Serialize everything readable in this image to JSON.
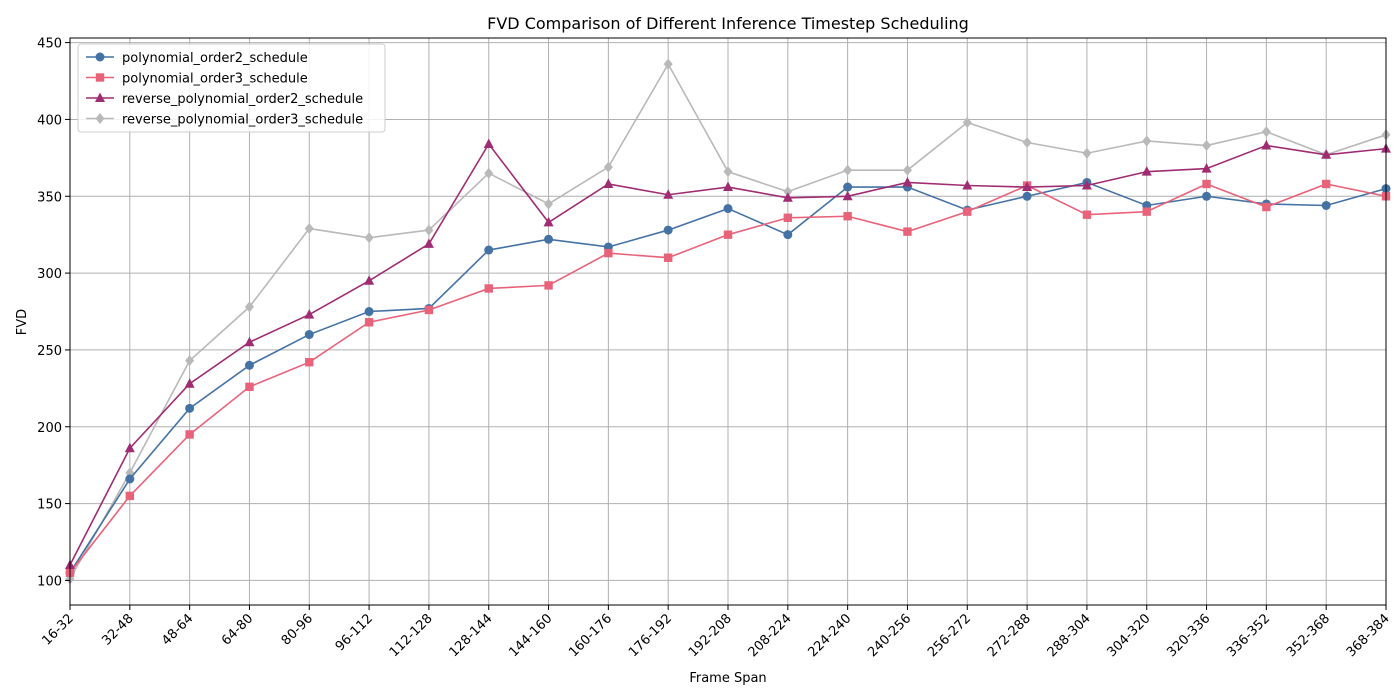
{
  "chart_data": {
    "type": "line",
    "title": "FVD Comparison of Different Inference Timestep Scheduling",
    "xlabel": "Frame Span",
    "ylabel": "FVD",
    "categories": [
      "16-32",
      "32-48",
      "48-64",
      "64-80",
      "80-96",
      "96-112",
      "112-128",
      "128-144",
      "144-160",
      "160-176",
      "176-192",
      "192-208",
      "208-224",
      "224-240",
      "240-256",
      "256-272",
      "272-288",
      "288-304",
      "304-320",
      "320-336",
      "336-352",
      "352-368",
      "368-384"
    ],
    "yticks": [
      100,
      150,
      200,
      250,
      300,
      350,
      400,
      450
    ],
    "ylim": [
      84,
      453
    ],
    "grid": true,
    "legend_position": "upper-left",
    "series": [
      {
        "name": "polynomial_order2_schedule",
        "color": "#4472a4",
        "marker": "circle",
        "values": [
          105,
          166,
          212,
          240,
          260,
          275,
          277,
          315,
          322,
          317,
          328,
          342,
          325,
          356,
          356,
          341,
          350,
          359,
          344,
          350,
          345,
          344,
          355
        ]
      },
      {
        "name": "polynomial_order3_schedule",
        "color": "#e8637a",
        "marker": "square",
        "values": [
          105,
          155,
          195,
          226,
          242,
          268,
          276,
          290,
          292,
          313,
          310,
          325,
          336,
          337,
          327,
          340,
          357,
          338,
          340,
          358,
          343,
          358,
          350
        ]
      },
      {
        "name": "reverse_polynomial_order2_schedule",
        "color": "#a02c72",
        "marker": "triangle",
        "values": [
          110,
          186,
          228,
          255,
          273,
          295,
          319,
          384,
          333,
          358,
          351,
          356,
          349,
          350,
          359,
          357,
          356,
          357,
          366,
          368,
          383,
          377,
          381
        ]
      },
      {
        "name": "reverse_polynomial_order3_schedule",
        "color": "#b9b9b9",
        "marker": "diamond",
        "values": [
          101,
          170,
          243,
          278,
          329,
          323,
          328,
          365,
          345,
          369,
          436,
          366,
          353,
          367,
          367,
          398,
          385,
          378,
          386,
          383,
          392,
          377,
          390
        ]
      }
    ]
  }
}
